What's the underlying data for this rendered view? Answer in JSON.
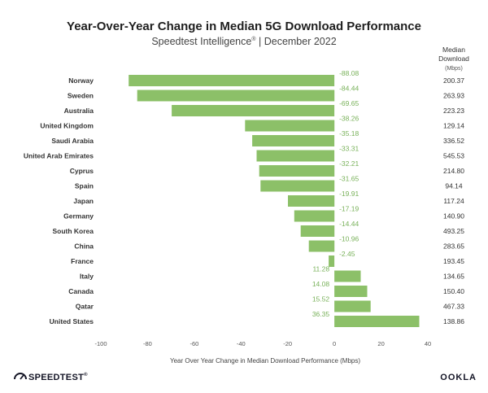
{
  "header": {
    "title": "Year-Over-Year Change in Median 5G Download Performance",
    "subtitle": "Speedtest Intelligence",
    "subtitle_mark": "®",
    "subtitle_date": " | December 2022"
  },
  "median_header": {
    "line1": "Median",
    "line2": "Download",
    "unit": "(Mbps)"
  },
  "footer": {
    "logo_left": "SPEEDTEST",
    "logo_left_mark": "®",
    "logo_right": "OOKLA"
  },
  "colors": {
    "bar": "#8cc068",
    "value_label": "#78b159",
    "text": "#333333"
  },
  "chart_data": {
    "type": "bar",
    "orientation": "horizontal",
    "title": "Year-Over-Year Change in Median 5G Download Performance",
    "xlabel": "Year Over Year Change in Median Download Performance (Mbps)",
    "ylabel": "",
    "xlim": [
      -100,
      40
    ],
    "xticks": [
      -100,
      -80,
      -60,
      -40,
      -20,
      0,
      20,
      40
    ],
    "grid": false,
    "categories": [
      "Norway",
      "Sweden",
      "Australia",
      "United Kingdom",
      "Saudi Arabia",
      "United Arab Emirates",
      "Cyprus",
      "Spain",
      "Japan",
      "Germany",
      "South Korea",
      "China",
      "France",
      "Italy",
      "Canada",
      "Qatar",
      "United States"
    ],
    "values": [
      -88.08,
      -84.44,
      -69.65,
      -38.26,
      -35.18,
      -33.31,
      -32.21,
      -31.65,
      -19.91,
      -17.19,
      -14.44,
      -10.96,
      -2.45,
      11.28,
      14.08,
      15.52,
      36.35
    ],
    "value_labels": [
      "-88.08",
      "-84.44",
      "-69.65",
      "-38.26",
      "-35.18",
      "-33.31",
      "-32.21",
      "-31.65",
      "-19.91",
      "-17.19",
      "-14.44",
      "-10.96",
      "-2.45",
      "11.28",
      "14.08",
      "15.52",
      "36.35"
    ],
    "median_download": [
      "200.37",
      "263.93",
      "223.23",
      "129.14",
      "336.52",
      "545.53",
      "214.80",
      "94.14",
      "117.24",
      "140.90",
      "493.25",
      "283.65",
      "193.45",
      "134.65",
      "150.40",
      "467.33",
      "138.86"
    ]
  }
}
